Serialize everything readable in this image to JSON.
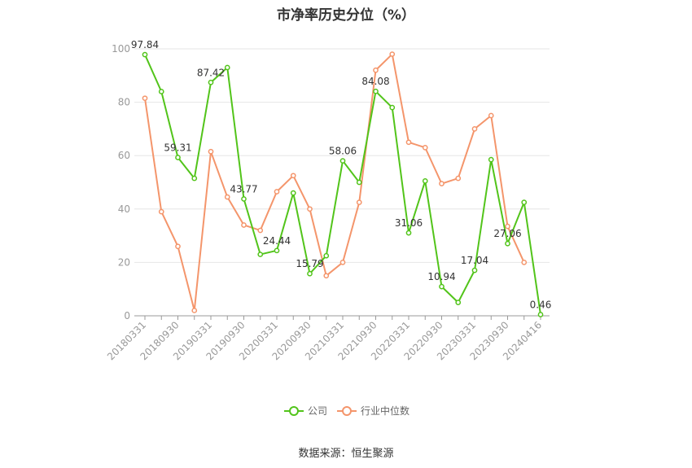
{
  "chart_data": {
    "type": "line",
    "title": "市净率历史分位（%）",
    "xlabel": "",
    "ylabel": "",
    "ylim": [
      0,
      100
    ],
    "y_ticks": [
      0,
      20,
      40,
      60,
      80,
      100
    ],
    "x_tick_labels": [
      "20180331",
      "20180930",
      "20190331",
      "20190930",
      "20200331",
      "20200930",
      "20210331",
      "20210930",
      "20220331",
      "20220930",
      "20230331",
      "20230930",
      "20240416"
    ],
    "grid": true,
    "legend_position": "bottom",
    "source": "数据来源：恒生聚源",
    "series": [
      {
        "name": "公司",
        "color": "#52c41a",
        "values": [
          97.84,
          84,
          59.31,
          51.5,
          87.42,
          93,
          43.77,
          23,
          24.44,
          46,
          15.79,
          22.5,
          58.06,
          50,
          84.08,
          78,
          31.06,
          50.5,
          10.94,
          5,
          17.04,
          58.5,
          27.06,
          42.5,
          0.46
        ],
        "point_labels": [
          {
            "index": 0,
            "text": "97.84"
          },
          {
            "index": 2,
            "text": "59.31"
          },
          {
            "index": 4,
            "text": "87.42"
          },
          {
            "index": 6,
            "text": "43.77"
          },
          {
            "index": 8,
            "text": "24.44"
          },
          {
            "index": 10,
            "text": "15.79"
          },
          {
            "index": 12,
            "text": "58.06"
          },
          {
            "index": 14,
            "text": "84.08"
          },
          {
            "index": 16,
            "text": "31.06"
          },
          {
            "index": 18,
            "text": "10.94"
          },
          {
            "index": 20,
            "text": "17.04"
          },
          {
            "index": 22,
            "text": "27.06"
          },
          {
            "index": 24,
            "text": "0.46"
          }
        ]
      },
      {
        "name": "行业中位数",
        "color": "#f4956b",
        "values": [
          81.5,
          39,
          26,
          2,
          61.5,
          44.5,
          34,
          32,
          46.5,
          52.5,
          40,
          15,
          20,
          42.5,
          92,
          98,
          65,
          63,
          49.5,
          51.5,
          70,
          75,
          33.5,
          20,
          null
        ]
      }
    ]
  }
}
